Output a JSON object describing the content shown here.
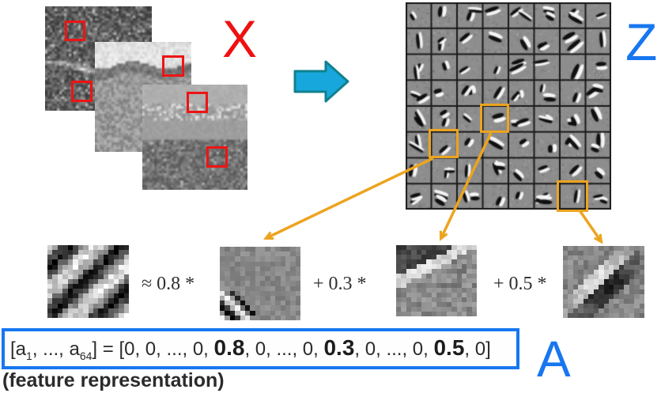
{
  "labels": {
    "input": "X",
    "dictionary": "Z",
    "activation": "A"
  },
  "input": {
    "image_count": 3,
    "patch_marker_count": 5
  },
  "dictionary": {
    "rows": 8,
    "cols": 8,
    "basis_count": 64,
    "highlighted_cells": [
      {
        "row": 5,
        "col": 1
      },
      {
        "row": 4,
        "col": 3
      },
      {
        "row": 7,
        "col": 6
      }
    ]
  },
  "equation": {
    "approx_term": "≈ 0.8 *",
    "term2": "+ 0.3 *",
    "term3": "+ 0.5 *",
    "coefficients": [
      0.8,
      0.3,
      0.5
    ]
  },
  "feature_vector": {
    "lhs_open": "[a",
    "sub_first": "1",
    "lhs_mid": ", ..., a",
    "sub_last": "64",
    "lhs_close": "] = [",
    "seg1": "0, 0, ..., 0, ",
    "val1": "0.8",
    "seg2": ", 0, ..., 0, ",
    "val2": "0.3",
    "seg3": ", 0, ..., 0, ",
    "val3": "0.5",
    "seg4": ", 0]"
  },
  "caption": "(feature representation)",
  "colors": {
    "red_marker": "#ee1414",
    "red_label": "#ef1010",
    "blue_label": "#1777f0",
    "blue_box": "#1777f0",
    "orange": "#eca41f",
    "block_arrow_fill": "#17a7dc",
    "block_arrow_stroke": "#11808f"
  }
}
